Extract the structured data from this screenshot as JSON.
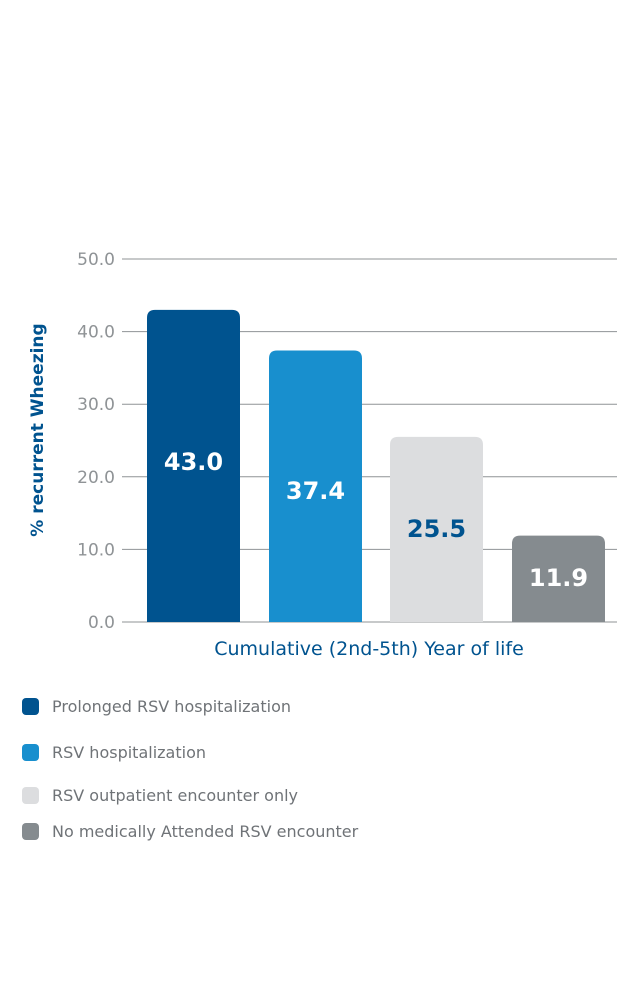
{
  "chart_data": {
    "type": "bar",
    "xlabel": "Cumulative (2nd-5th) Year of life",
    "ylabel": "% recurrent Wheezing",
    "ylim": [
      0,
      50
    ],
    "yticks": [
      "0.0",
      "10.0",
      "20.0",
      "30.0",
      "40.0",
      "50.0"
    ],
    "grid": true,
    "legend_position": "bottom",
    "series": [
      {
        "name": "Prolonged RSV hospitalization",
        "value": 43.0,
        "label": "43.0",
        "color": "#00538f",
        "label_color": "#ffffff"
      },
      {
        "name": "RSV hospitalization",
        "value": 37.4,
        "label": "37.4",
        "color": "#188fce",
        "label_color": "#ffffff"
      },
      {
        "name": "RSV outpatient encounter only",
        "value": 25.5,
        "label": "25.5",
        "color": "#dcdddf",
        "label_color": "#00538f"
      },
      {
        "name": "No medically Attended RSV encounter",
        "value": 11.9,
        "label": "11.9",
        "color": "#858b8f",
        "label_color": "#ffffff"
      }
    ]
  },
  "colors": {
    "axis_text": "#8f9396",
    "ylabel": "#00538f",
    "xlabel": "#00538f",
    "grid": "#8f9396"
  }
}
